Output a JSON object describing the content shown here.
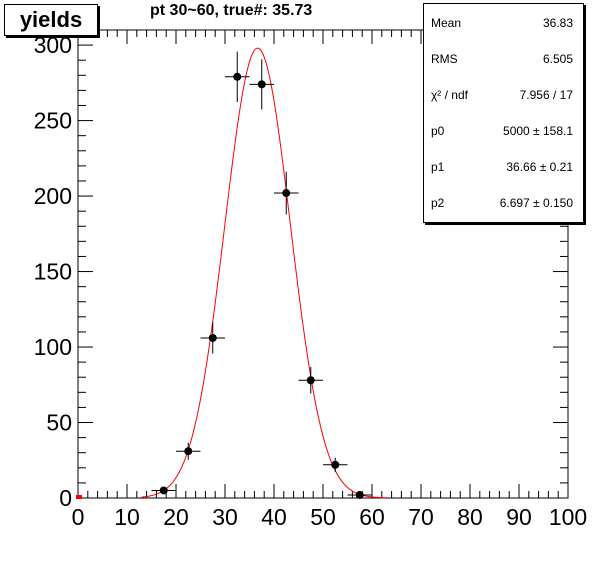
{
  "histogram": {
    "name": "yields",
    "title": "pt 30~60, true#: 35.73"
  },
  "stats_box": {
    "entries": [
      {
        "label": "Mean",
        "value": "36.83"
      },
      {
        "label": "RMS",
        "value": "6.505"
      },
      {
        "label": "χ² / ndf",
        "value": "7.956 / 17"
      },
      {
        "label": "p0",
        "value": "5000  ± 158.1"
      },
      {
        "label": "p1",
        "value": "36.66  ± 0.21"
      },
      {
        "label": "p2",
        "value": "6.697  ± 0.150"
      }
    ]
  },
  "chart_data": {
    "type": "scatter",
    "title": "pt 30~60, true#: 35.73",
    "xlabel": "",
    "ylabel": "",
    "xlim": [
      0,
      100
    ],
    "ylim": [
      0,
      310
    ],
    "x_ticks": [
      0,
      10,
      20,
      30,
      40,
      50,
      60,
      70,
      80,
      90,
      100
    ],
    "y_ticks": [
      0,
      50,
      100,
      150,
      200,
      250,
      300
    ],
    "grid": false,
    "series": [
      {
        "kind": "points-with-errors",
        "color": "#000000",
        "points": [
          {
            "x": 17.5,
            "y": 5,
            "xerr": 2.5,
            "yerr": 2.2
          },
          {
            "x": 22.5,
            "y": 31,
            "xerr": 2.5,
            "yerr": 5.6
          },
          {
            "x": 27.5,
            "y": 106,
            "xerr": 2.5,
            "yerr": 10.3
          },
          {
            "x": 32.5,
            "y": 279,
            "xerr": 2.5,
            "yerr": 16.7
          },
          {
            "x": 37.5,
            "y": 274,
            "xerr": 2.5,
            "yerr": 16.6
          },
          {
            "x": 42.5,
            "y": 202,
            "xerr": 2.5,
            "yerr": 14.2
          },
          {
            "x": 47.5,
            "y": 78,
            "xerr": 2.5,
            "yerr": 8.8
          },
          {
            "x": 52.5,
            "y": 22,
            "xerr": 2.5,
            "yerr": 4.7
          },
          {
            "x": 57.5,
            "y": 2,
            "xerr": 2.5,
            "yerr": 1.4
          }
        ]
      },
      {
        "kind": "gaussian-fit",
        "color": "#ff0000",
        "constant": 298,
        "mean": 36.66,
        "sigma": 6.697,
        "x_range": [
          13,
          63
        ]
      }
    ]
  }
}
